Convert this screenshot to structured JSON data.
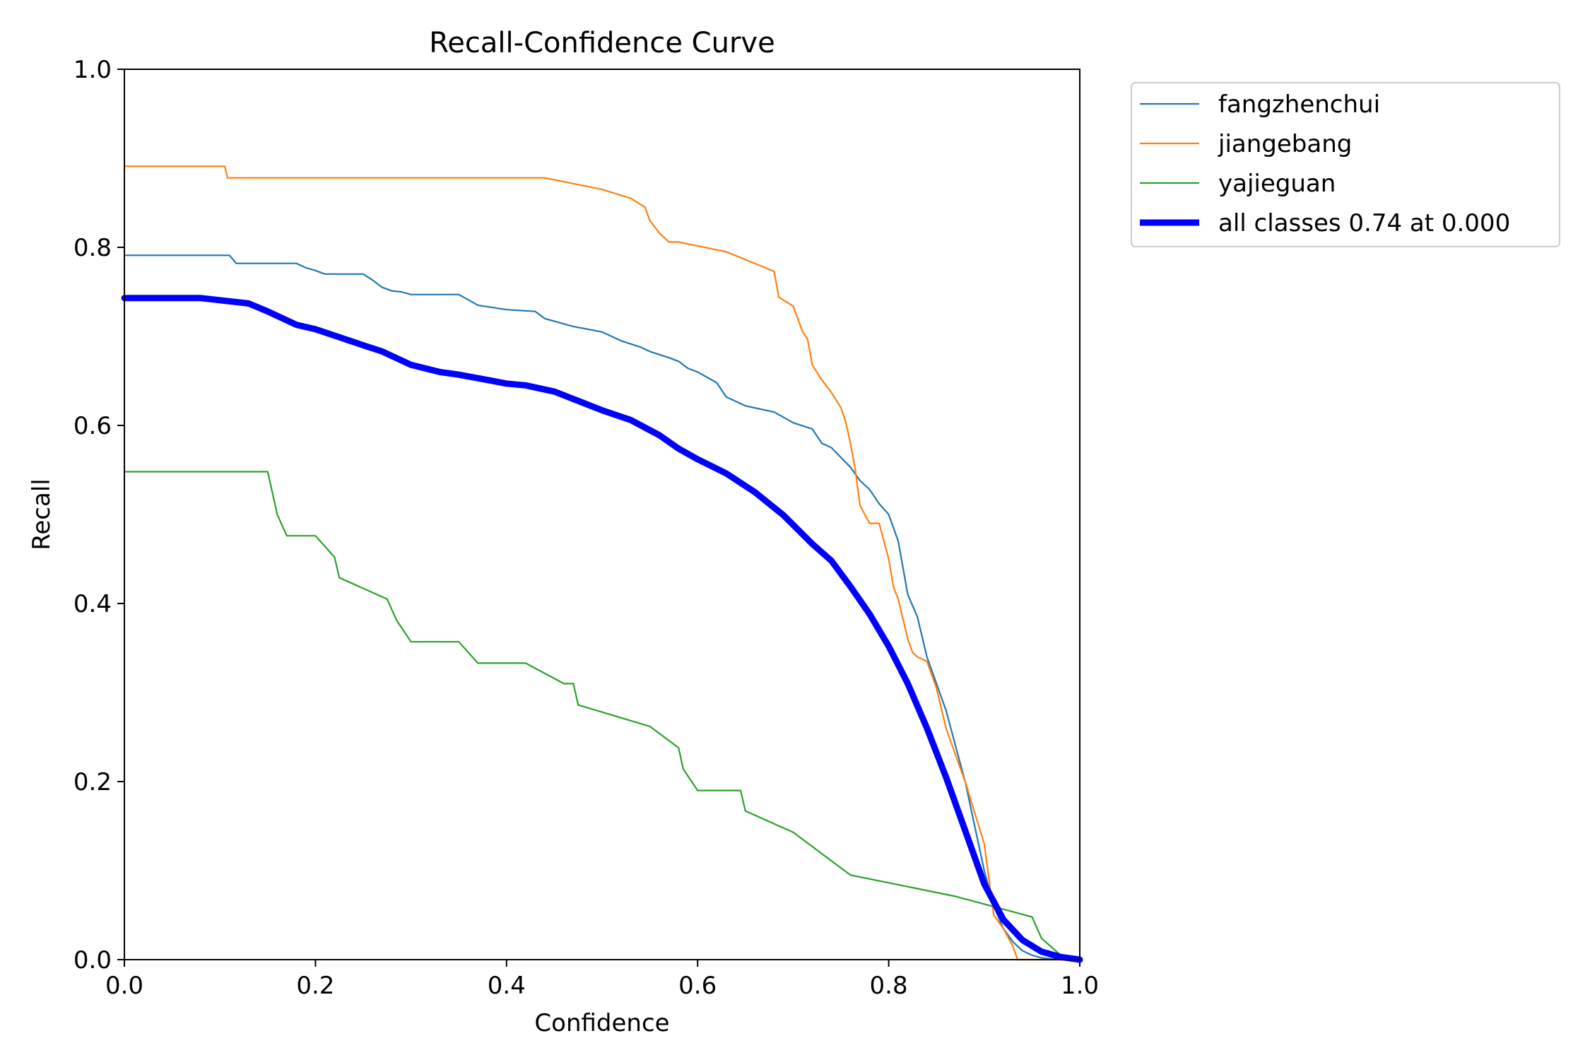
{
  "chart_data": {
    "type": "line",
    "title": "Recall-Confidence Curve",
    "xlabel": "Confidence",
    "ylabel": "Recall",
    "xlim": [
      0,
      1
    ],
    "ylim": [
      0,
      1
    ],
    "xticks": [
      0.0,
      0.2,
      0.4,
      0.6,
      0.8,
      1.0
    ],
    "yticks": [
      0.0,
      0.2,
      0.4,
      0.6,
      0.8,
      1.0
    ],
    "xtick_labels": [
      "0.0",
      "0.2",
      "0.4",
      "0.6",
      "0.8",
      "1.0"
    ],
    "ytick_labels": [
      "0.0",
      "0.2",
      "0.4",
      "0.6",
      "0.8",
      "1.0"
    ],
    "grid": false,
    "legend_position": "outside-top-right",
    "series": [
      {
        "name": "fangzhenchui",
        "color": "#1f77b4",
        "emphasis": false,
        "x": [
          0.0,
          0.11,
          0.117,
          0.18,
          0.19,
          0.2,
          0.21,
          0.25,
          0.26,
          0.27,
          0.28,
          0.29,
          0.3,
          0.35,
          0.36,
          0.37,
          0.4,
          0.43,
          0.44,
          0.47,
          0.5,
          0.52,
          0.54,
          0.55,
          0.57,
          0.58,
          0.59,
          0.6,
          0.62,
          0.63,
          0.64,
          0.65,
          0.68,
          0.7,
          0.72,
          0.73,
          0.74,
          0.75,
          0.76,
          0.77,
          0.78,
          0.79,
          0.8,
          0.81,
          0.82,
          0.83,
          0.84,
          0.85,
          0.86,
          0.87,
          0.88,
          0.89,
          0.9,
          0.91,
          0.92,
          0.93,
          0.94,
          0.95,
          0.96,
          0.97,
          0.98,
          1.0
        ],
        "y": [
          0.791,
          0.791,
          0.782,
          0.782,
          0.777,
          0.774,
          0.77,
          0.77,
          0.763,
          0.755,
          0.751,
          0.75,
          0.747,
          0.747,
          0.741,
          0.735,
          0.73,
          0.728,
          0.72,
          0.711,
          0.705,
          0.695,
          0.688,
          0.683,
          0.676,
          0.672,
          0.664,
          0.66,
          0.648,
          0.632,
          0.627,
          0.622,
          0.615,
          0.603,
          0.596,
          0.58,
          0.575,
          0.564,
          0.553,
          0.538,
          0.528,
          0.512,
          0.5,
          0.47,
          0.41,
          0.385,
          0.34,
          0.31,
          0.28,
          0.24,
          0.2,
          0.15,
          0.1,
          0.06,
          0.035,
          0.02,
          0.01,
          0.005,
          0.002,
          0.001,
          0.0,
          0.0
        ]
      },
      {
        "name": "jiangebang",
        "color": "#ff7f0e",
        "emphasis": false,
        "x": [
          0.0,
          0.105,
          0.108,
          0.44,
          0.5,
          0.53,
          0.545,
          0.55,
          0.56,
          0.57,
          0.58,
          0.63,
          0.68,
          0.685,
          0.7,
          0.71,
          0.715,
          0.72,
          0.73,
          0.74,
          0.75,
          0.755,
          0.76,
          0.765,
          0.77,
          0.78,
          0.79,
          0.8,
          0.805,
          0.81,
          0.82,
          0.825,
          0.83,
          0.84,
          0.85,
          0.86,
          0.87,
          0.88,
          0.89,
          0.9,
          0.905,
          0.91,
          0.92,
          0.93,
          0.935,
          0.95,
          0.97,
          1.0
        ],
        "y": [
          0.891,
          0.891,
          0.878,
          0.878,
          0.865,
          0.855,
          0.845,
          0.83,
          0.816,
          0.806,
          0.806,
          0.795,
          0.773,
          0.744,
          0.734,
          0.705,
          0.697,
          0.668,
          0.651,
          0.637,
          0.62,
          0.604,
          0.58,
          0.55,
          0.51,
          0.49,
          0.49,
          0.45,
          0.418,
          0.405,
          0.36,
          0.345,
          0.34,
          0.335,
          0.305,
          0.26,
          0.23,
          0.2,
          0.165,
          0.13,
          0.09,
          0.05,
          0.035,
          0.015,
          0.0,
          0.0,
          0.0,
          0.0
        ]
      },
      {
        "name": "yajieguan",
        "color": "#2ca02c",
        "emphasis": false,
        "x": [
          0.0,
          0.15,
          0.155,
          0.16,
          0.17,
          0.2,
          0.22,
          0.225,
          0.275,
          0.285,
          0.3,
          0.35,
          0.37,
          0.42,
          0.46,
          0.47,
          0.475,
          0.55,
          0.58,
          0.585,
          0.6,
          0.645,
          0.65,
          0.7,
          0.73,
          0.76,
          0.87,
          0.95,
          0.96,
          0.98,
          1.0
        ],
        "y": [
          0.548,
          0.548,
          0.524,
          0.5,
          0.476,
          0.476,
          0.452,
          0.429,
          0.405,
          0.381,
          0.357,
          0.357,
          0.333,
          0.333,
          0.31,
          0.31,
          0.286,
          0.262,
          0.238,
          0.214,
          0.19,
          0.19,
          0.167,
          0.143,
          0.119,
          0.095,
          0.071,
          0.048,
          0.024,
          0.005,
          0.0
        ]
      },
      {
        "name": "all classes 0.74 at 0.000",
        "color": "#0000ff",
        "emphasis": true,
        "x": [
          0.0,
          0.08,
          0.13,
          0.15,
          0.18,
          0.2,
          0.25,
          0.27,
          0.3,
          0.33,
          0.35,
          0.38,
          0.4,
          0.42,
          0.45,
          0.5,
          0.53,
          0.56,
          0.58,
          0.6,
          0.63,
          0.66,
          0.69,
          0.72,
          0.74,
          0.76,
          0.78,
          0.8,
          0.82,
          0.84,
          0.86,
          0.88,
          0.9,
          0.92,
          0.94,
          0.96,
          0.98,
          1.0
        ],
        "y": [
          0.743,
          0.743,
          0.737,
          0.728,
          0.713,
          0.708,
          0.69,
          0.683,
          0.668,
          0.66,
          0.657,
          0.651,
          0.647,
          0.645,
          0.638,
          0.617,
          0.606,
          0.589,
          0.574,
          0.562,
          0.546,
          0.525,
          0.499,
          0.467,
          0.448,
          0.419,
          0.388,
          0.352,
          0.31,
          0.26,
          0.205,
          0.145,
          0.085,
          0.045,
          0.022,
          0.009,
          0.003,
          0.0
        ]
      }
    ]
  }
}
